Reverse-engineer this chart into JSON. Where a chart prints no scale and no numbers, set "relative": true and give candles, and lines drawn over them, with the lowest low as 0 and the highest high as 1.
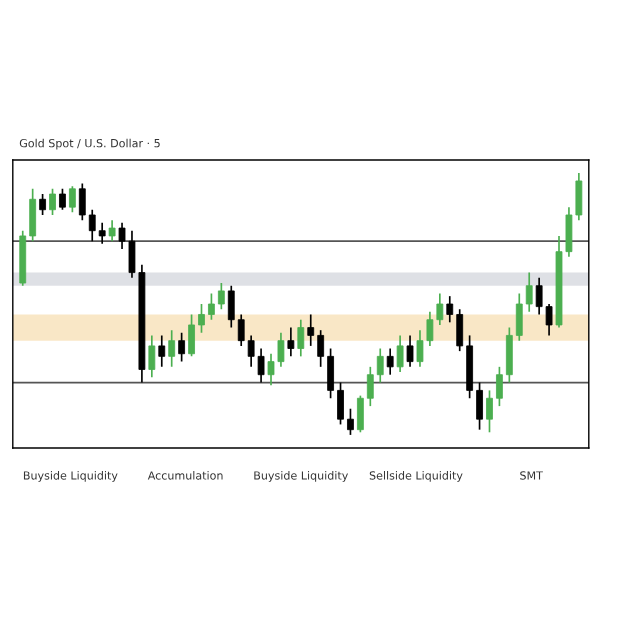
{
  "chart_data": {
    "type": "candlestick",
    "title": "Gold Spot / U.S. Dollar · 5",
    "relative": true,
    "categories": [
      null,
      null,
      null,
      null,
      null,
      null,
      null,
      null,
      null,
      null,
      null,
      null,
      null,
      null,
      null,
      null,
      null,
      null,
      null,
      null,
      null,
      null,
      null,
      null,
      null,
      null,
      null,
      null,
      null,
      null,
      null,
      null,
      null,
      null,
      null,
      null,
      null,
      null,
      null,
      null,
      null,
      null,
      null,
      null,
      null,
      null,
      null,
      null,
      null,
      null,
      null,
      null,
      null,
      null,
      null,
      null,
      null
    ],
    "ohlc": [
      [
        0.58,
        0.78,
        0.57,
        0.76
      ],
      [
        0.76,
        0.94,
        0.74,
        0.9
      ],
      [
        0.9,
        0.92,
        0.84,
        0.86
      ],
      [
        0.86,
        0.94,
        0.84,
        0.92
      ],
      [
        0.92,
        0.94,
        0.86,
        0.87
      ],
      [
        0.87,
        0.95,
        0.85,
        0.94
      ],
      [
        0.94,
        0.96,
        0.82,
        0.84
      ],
      [
        0.84,
        0.86,
        0.74,
        0.78
      ],
      [
        0.78,
        0.81,
        0.73,
        0.76
      ],
      [
        0.76,
        0.82,
        0.74,
        0.79
      ],
      [
        0.79,
        0.81,
        0.71,
        0.74
      ],
      [
        0.74,
        0.78,
        0.6,
        0.62
      ],
      [
        0.62,
        0.65,
        0.2,
        0.25
      ],
      [
        0.25,
        0.38,
        0.22,
        0.34
      ],
      [
        0.34,
        0.38,
        0.26,
        0.3
      ],
      [
        0.3,
        0.4,
        0.26,
        0.36
      ],
      [
        0.36,
        0.39,
        0.28,
        0.31
      ],
      [
        0.31,
        0.46,
        0.3,
        0.42
      ],
      [
        0.42,
        0.5,
        0.39,
        0.46
      ],
      [
        0.46,
        0.54,
        0.44,
        0.5
      ],
      [
        0.5,
        0.58,
        0.48,
        0.55
      ],
      [
        0.55,
        0.57,
        0.41,
        0.44
      ],
      [
        0.44,
        0.46,
        0.34,
        0.36
      ],
      [
        0.36,
        0.38,
        0.26,
        0.3
      ],
      [
        0.3,
        0.33,
        0.2,
        0.23
      ],
      [
        0.23,
        0.31,
        0.19,
        0.28
      ],
      [
        0.28,
        0.39,
        0.26,
        0.36
      ],
      [
        0.36,
        0.41,
        0.3,
        0.33
      ],
      [
        0.33,
        0.44,
        0.3,
        0.41
      ],
      [
        0.41,
        0.46,
        0.34,
        0.38
      ],
      [
        0.38,
        0.4,
        0.26,
        0.3
      ],
      [
        0.3,
        0.33,
        0.14,
        0.17
      ],
      [
        0.17,
        0.2,
        0.04,
        0.06
      ],
      [
        0.06,
        0.1,
        0.0,
        0.02
      ],
      [
        0.02,
        0.15,
        0.01,
        0.14
      ],
      [
        0.14,
        0.26,
        0.11,
        0.23
      ],
      [
        0.23,
        0.33,
        0.2,
        0.3
      ],
      [
        0.3,
        0.33,
        0.23,
        0.26
      ],
      [
        0.26,
        0.38,
        0.24,
        0.34
      ],
      [
        0.34,
        0.38,
        0.26,
        0.28
      ],
      [
        0.28,
        0.4,
        0.26,
        0.36
      ],
      [
        0.36,
        0.47,
        0.34,
        0.44
      ],
      [
        0.44,
        0.54,
        0.42,
        0.5
      ],
      [
        0.5,
        0.53,
        0.43,
        0.46
      ],
      [
        0.46,
        0.48,
        0.32,
        0.34
      ],
      [
        0.34,
        0.38,
        0.14,
        0.17
      ],
      [
        0.17,
        0.2,
        0.02,
        0.06
      ],
      [
        0.06,
        0.17,
        0.01,
        0.14
      ],
      [
        0.14,
        0.26,
        0.11,
        0.23
      ],
      [
        0.23,
        0.41,
        0.2,
        0.38
      ],
      [
        0.38,
        0.54,
        0.36,
        0.5
      ],
      [
        0.5,
        0.62,
        0.47,
        0.57
      ],
      [
        0.57,
        0.6,
        0.46,
        0.49
      ],
      [
        0.49,
        0.5,
        0.38,
        0.42
      ],
      [
        0.42,
        0.76,
        0.41,
        0.7
      ],
      [
        0.7,
        0.87,
        0.68,
        0.84
      ],
      [
        0.84,
        1.0,
        0.82,
        0.97
      ]
    ],
    "colors": [
      "#4caf50",
      "#4caf50",
      "#000000",
      "#4caf50",
      "#000000",
      "#4caf50",
      "#000000",
      "#000000",
      "#000000",
      "#4caf50",
      "#000000",
      "#000000",
      "#000000",
      "#4caf50",
      "#000000",
      "#4caf50",
      "#000000",
      "#4caf50",
      "#4caf50",
      "#4caf50",
      "#4caf50",
      "#000000",
      "#000000",
      "#000000",
      "#000000",
      "#4caf50",
      "#4caf50",
      "#000000",
      "#4caf50",
      "#000000",
      "#000000",
      "#000000",
      "#000000",
      "#000000",
      "#4caf50",
      "#4caf50",
      "#4caf50",
      "#000000",
      "#4caf50",
      "#000000",
      "#4caf50",
      "#4caf50",
      "#4caf50",
      "#000000",
      "#000000",
      "#000000",
      "#000000",
      "#4caf50",
      "#4caf50",
      "#4caf50",
      "#4caf50",
      "#4caf50",
      "#000000",
      "#000000",
      "#4caf50",
      "#4caf50",
      "#4caf50"
    ],
    "ref_lines": [
      {
        "axis": "y",
        "value": 0.74,
        "color": "#555555"
      },
      {
        "axis": "y",
        "value": 0.2,
        "color": "#555555"
      }
    ],
    "bands": [
      {
        "axis": "y",
        "from": 0.57,
        "to": 0.62,
        "color": "#c8ccd4"
      },
      {
        "axis": "y",
        "from": 0.36,
        "to": 0.46,
        "color": "#f5d7a0"
      }
    ],
    "annotations": [
      "Buyside Liquidity",
      "Accumulation",
      "Buyside Liquidity",
      "Sellside Liquidity",
      "SMT"
    ],
    "grid": false
  }
}
